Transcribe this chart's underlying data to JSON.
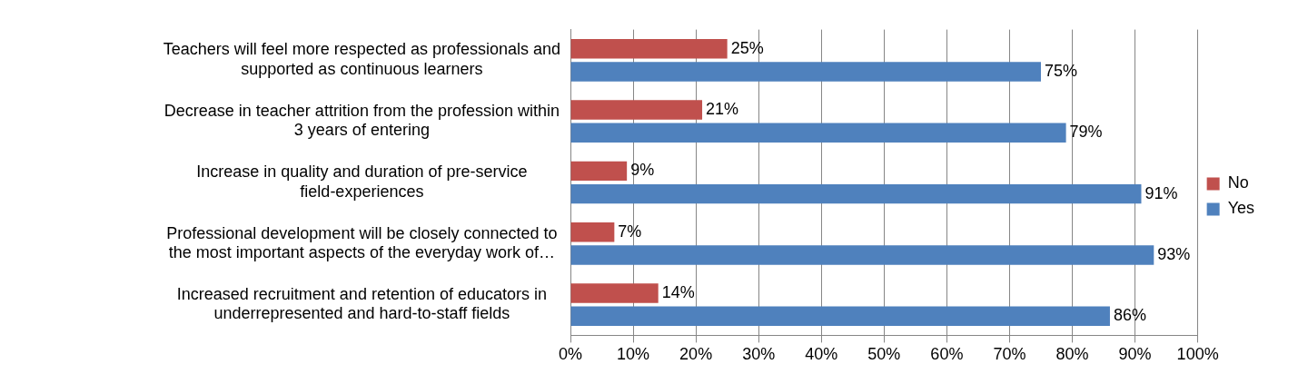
{
  "chart_data": {
    "type": "bar",
    "orientation": "horizontal",
    "categories": [
      "Teachers will feel more respected as professionals and supported as continuous learners",
      "Decrease in teacher attrition from the profession within 3 years of entering",
      "Increase in quality and duration of pre-service field-experiences",
      "Professional development will be closely connected to the most important aspects of the everyday work of…",
      "Increased recruitment and retention of educators in underrepresented and hard-to-staff fields"
    ],
    "series": [
      {
        "name": "No",
        "color": "#c0504d",
        "values": [
          25,
          21,
          9,
          7,
          14
        ],
        "value_labels": [
          "25%",
          "21%",
          "9%",
          "7%",
          "14%"
        ]
      },
      {
        "name": "Yes",
        "color": "#4f81bd",
        "values": [
          75,
          79,
          91,
          93,
          86
        ],
        "value_labels": [
          "75%",
          "79%",
          "91%",
          "93%",
          "86%"
        ]
      }
    ],
    "xlim": [
      0,
      100
    ],
    "xticks": [
      {
        "value": 0,
        "label": "0%"
      },
      {
        "value": 10,
        "label": "10%"
      },
      {
        "value": 20,
        "label": "20%"
      },
      {
        "value": 30,
        "label": "30%"
      },
      {
        "value": 40,
        "label": "40%"
      },
      {
        "value": 50,
        "label": "50%"
      },
      {
        "value": 60,
        "label": "60%"
      },
      {
        "value": 70,
        "label": "70%"
      },
      {
        "value": 80,
        "label": "80%"
      },
      {
        "value": 90,
        "label": "90%"
      },
      {
        "value": 100,
        "label": "100%"
      }
    ],
    "grid": "x",
    "legend": "right"
  }
}
